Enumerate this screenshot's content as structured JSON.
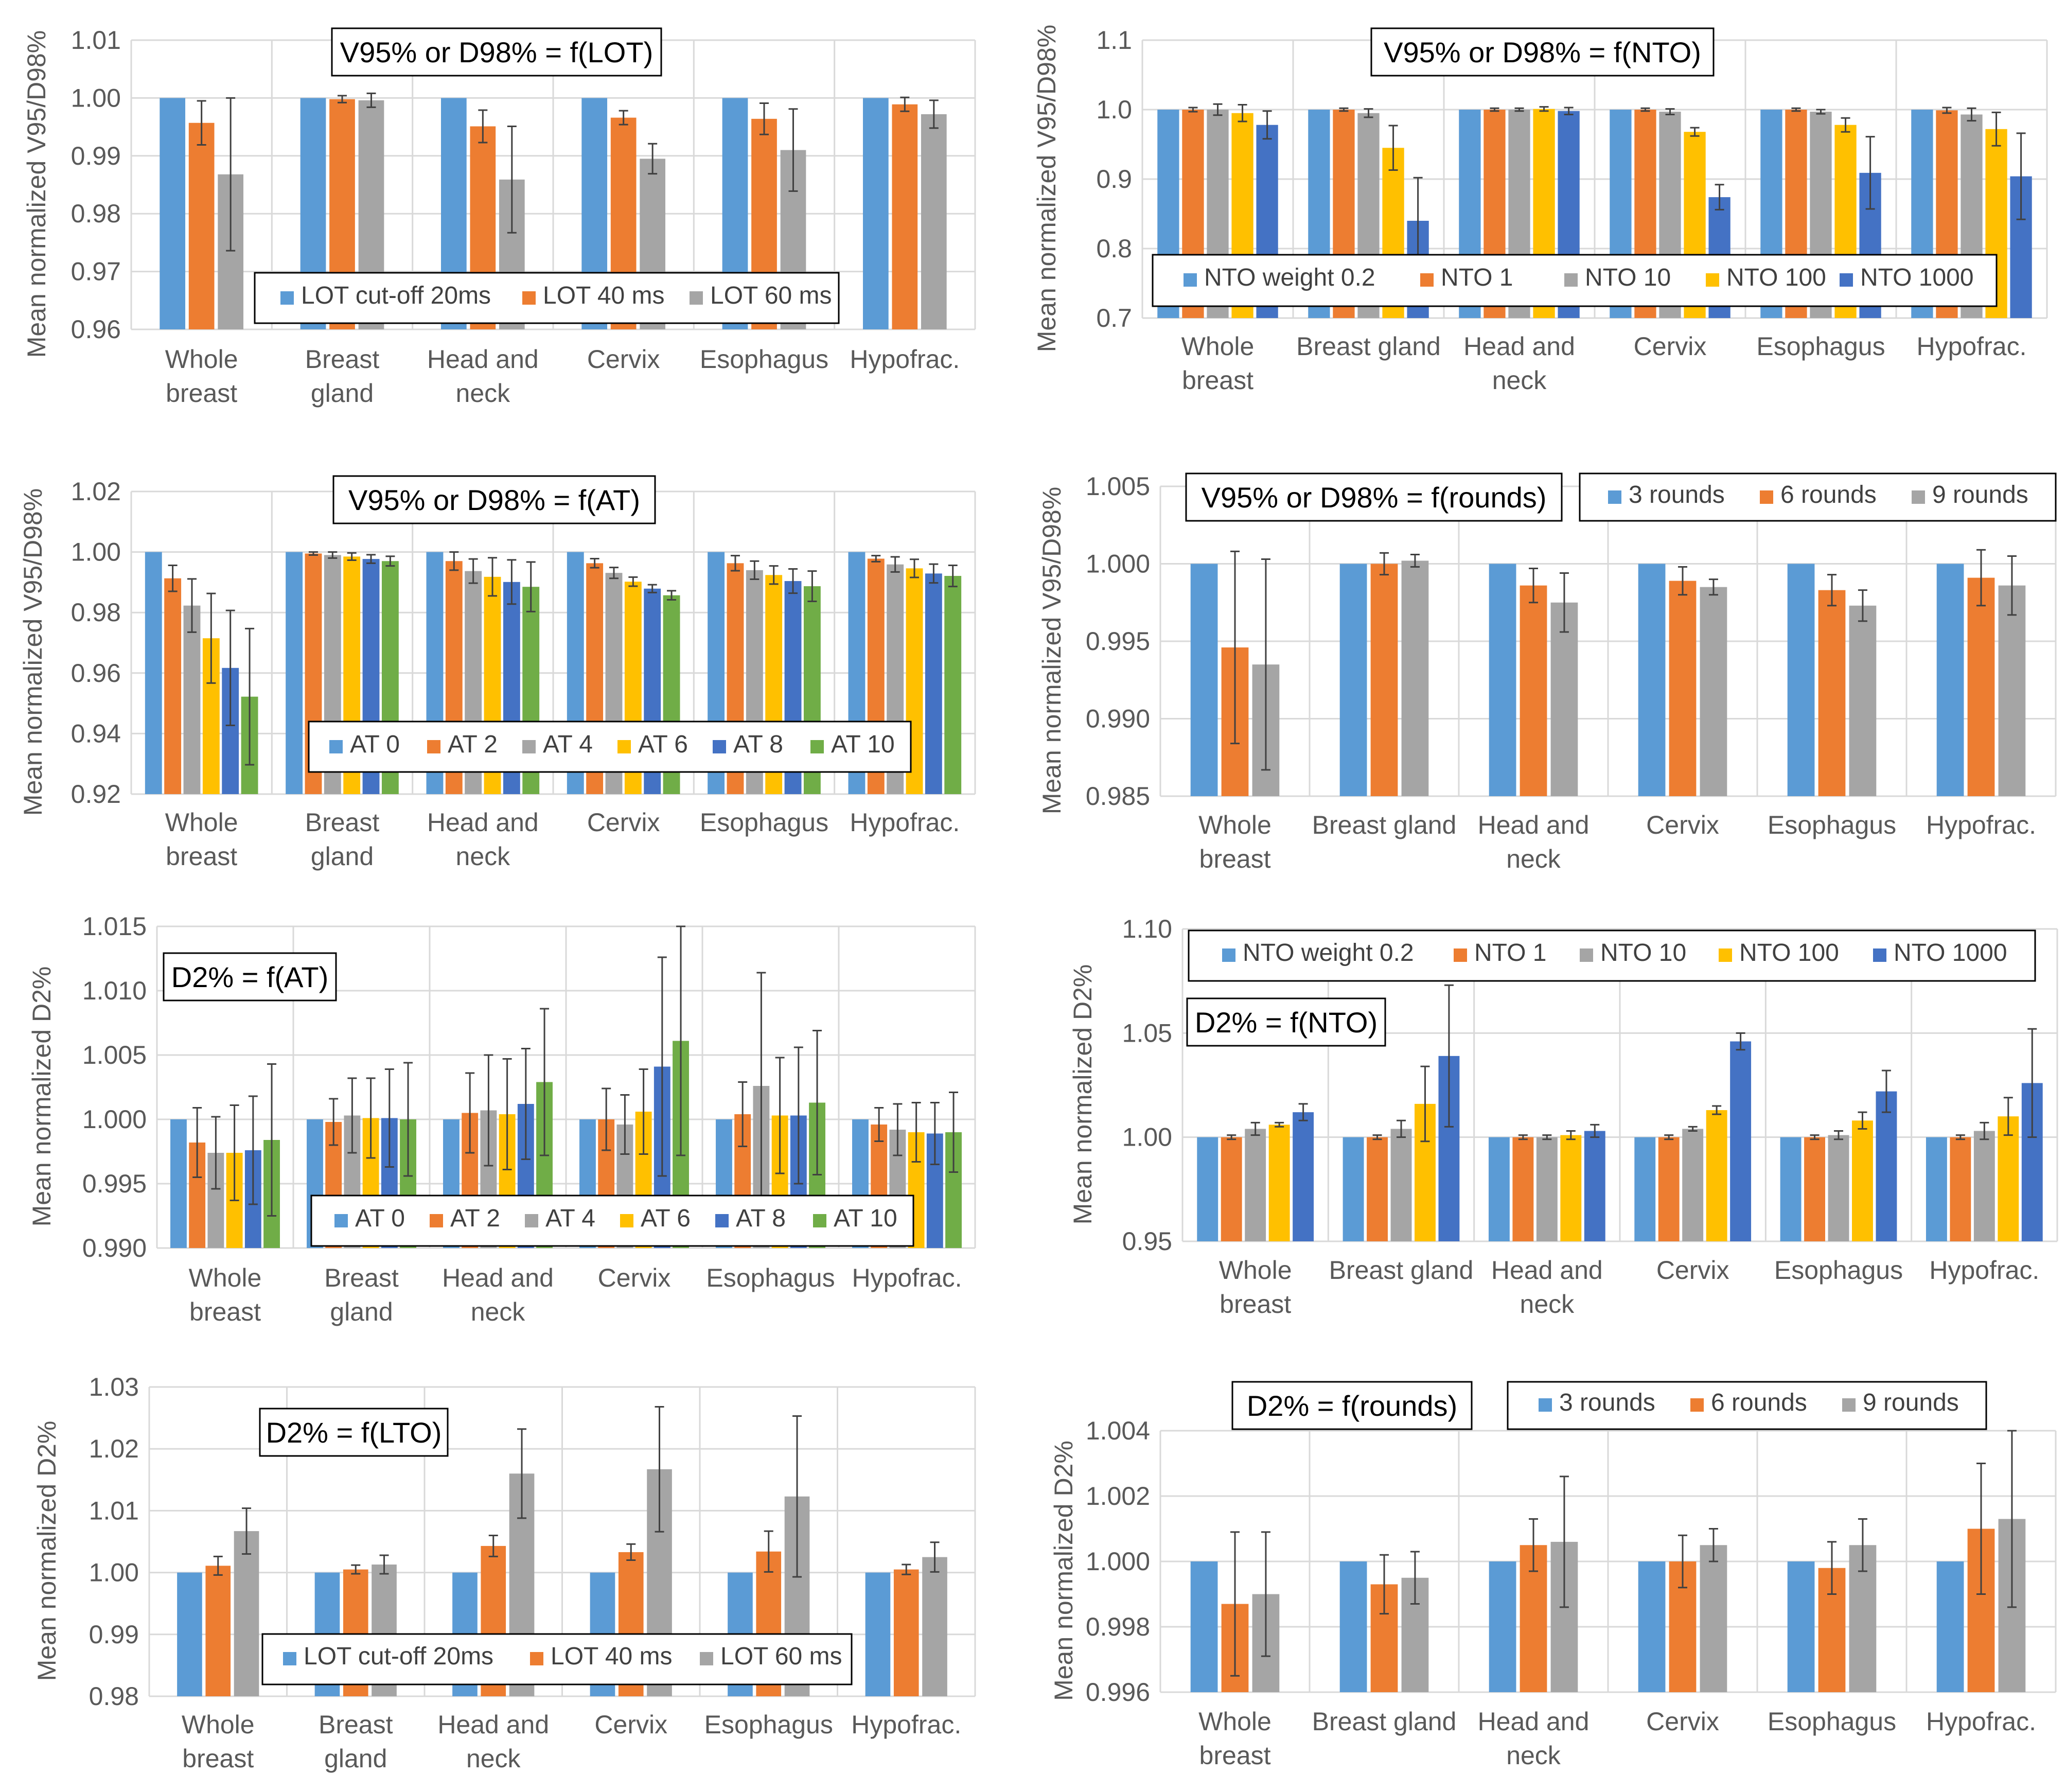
{
  "chart_data": [
    {
      "type": "bar",
      "title": "V95% or D98% = f(LOT)",
      "ylabel": "Mean normalized V95/D98%",
      "ylim": [
        0.96,
        1.01
      ],
      "yticks": [
        "0.96",
        "0.97",
        "0.98",
        "0.99",
        "1.00",
        "1.01"
      ],
      "categories": [
        "Whole breast",
        "Breast gland",
        "Head and neck",
        "Cervix",
        "Esophagus",
        "Hypofrac."
      ],
      "colors": [
        "#5B9BD5",
        "#ED7D31",
        "#A5A5A5"
      ],
      "series": [
        {
          "name": "LOT cut-off 20ms",
          "values": [
            1.0,
            1.0,
            1.0,
            1.0,
            1.0,
            1.0
          ],
          "errors": [
            0,
            0,
            0,
            0,
            0,
            0
          ]
        },
        {
          "name": "LOT 40 ms",
          "values": [
            0.9957,
            0.9998,
            0.9951,
            0.9966,
            0.9964,
            0.9989
          ],
          "errors": [
            0.0038,
            0.0006,
            0.0028,
            0.0012,
            0.0027,
            0.0012
          ]
        },
        {
          "name": "LOT 60 ms",
          "values": [
            0.9868,
            0.9996,
            0.9859,
            0.9895,
            0.991,
            0.9972
          ],
          "errors": [
            0.0132,
            0.0012,
            0.0092,
            0.0026,
            0.0071,
            0.0024
          ]
        }
      ]
    },
    {
      "type": "bar",
      "title": "V95% or D98% = f(NTO)",
      "ylabel": "Mean normalized V95/D98%",
      "ylim": [
        0.7,
        1.1
      ],
      "yticks": [
        "0.7",
        "0.8",
        "0.9",
        "1.0",
        "1.1"
      ],
      "categories": [
        "Whole breast",
        "Breast gland",
        "Head and neck",
        "Cervix",
        "Esophagus",
        "Hypofrac."
      ],
      "colors": [
        "#5B9BD5",
        "#ED7D31",
        "#A5A5A5",
        "#FFC000",
        "#4472C4"
      ],
      "series": [
        {
          "name": "NTO weight 0.2",
          "values": [
            1.0,
            1.0,
            1.0,
            1.0,
            1.0,
            1.0
          ],
          "errors": [
            0,
            0,
            0,
            0,
            0,
            0
          ]
        },
        {
          "name": "NTO 1",
          "values": [
            1.0,
            1.0,
            1.0,
            1.0,
            1.0,
            0.999
          ],
          "errors": [
            0.003,
            0.002,
            0.002,
            0.002,
            0.002,
            0.004
          ]
        },
        {
          "name": "NTO 10",
          "values": [
            1.0,
            0.995,
            1.0,
            0.997,
            0.997,
            0.993
          ],
          "errors": [
            0.008,
            0.006,
            0.002,
            0.004,
            0.003,
            0.009
          ]
        },
        {
          "name": "NTO 100",
          "values": [
            0.995,
            0.945,
            1.001,
            0.968,
            0.978,
            0.972
          ],
          "errors": [
            0.012,
            0.032,
            0.003,
            0.006,
            0.01,
            0.024
          ]
        },
        {
          "name": "NTO 1000",
          "values": [
            0.978,
            0.84,
            0.998,
            0.874,
            0.909,
            0.904
          ],
          "errors": [
            0.02,
            0.062,
            0.005,
            0.018,
            0.052,
            0.062
          ]
        }
      ]
    },
    {
      "type": "bar",
      "title": "V95% or D98% = f(AT)",
      "ylabel": "Mean normalized V95/D98%",
      "ylim": [
        0.92,
        1.02
      ],
      "yticks": [
        "0.92",
        "0.94",
        "0.96",
        "0.98",
        "1.00",
        "1.02"
      ],
      "categories": [
        "Whole breast",
        "Breast gland",
        "Head and neck",
        "Cervix",
        "Esophagus",
        "Hypofrac."
      ],
      "colors": [
        "#5B9BD5",
        "#ED7D31",
        "#A5A5A5",
        "#FFC000",
        "#4472C4",
        "#70AD47"
      ],
      "series": [
        {
          "name": "AT 0",
          "values": [
            1.0,
            1.0,
            1.0,
            1.0,
            1.0,
            1.0
          ],
          "errors": [
            0,
            0,
            0,
            0,
            0,
            0
          ]
        },
        {
          "name": "AT 2",
          "values": [
            0.9913,
            0.9995,
            0.997,
            0.9963,
            0.9963,
            0.9978
          ],
          "errors": [
            0.0043,
            0.0005,
            0.003,
            0.0015,
            0.0025,
            0.001
          ]
        },
        {
          "name": "AT 4",
          "values": [
            0.9823,
            0.999,
            0.9937,
            0.9931,
            0.994,
            0.9959
          ],
          "errors": [
            0.0088,
            0.001,
            0.004,
            0.0018,
            0.003,
            0.0025
          ]
        },
        {
          "name": "AT 6",
          "values": [
            0.9715,
            0.9985,
            0.9918,
            0.9902,
            0.9924,
            0.9946
          ],
          "errors": [
            0.0148,
            0.0012,
            0.0063,
            0.0015,
            0.003,
            0.003
          ]
        },
        {
          "name": "AT 8",
          "values": [
            0.9617,
            0.9977,
            0.9901,
            0.9879,
            0.9904,
            0.9929
          ],
          "errors": [
            0.019,
            0.0014,
            0.0073,
            0.0013,
            0.004,
            0.0031
          ]
        },
        {
          "name": "AT 10",
          "values": [
            0.9522,
            0.997,
            0.9885,
            0.9857,
            0.9887,
            0.9921
          ],
          "errors": [
            0.0225,
            0.0016,
            0.0082,
            0.0015,
            0.005,
            0.0035
          ]
        }
      ]
    },
    {
      "type": "bar",
      "title": "V95% or D98% = f(rounds)",
      "ylabel": "Mean normalized V95/D98%",
      "ylim": [
        0.985,
        1.005
      ],
      "yticks": [
        "0.985",
        "0.990",
        "0.995",
        "1.000",
        "1.005"
      ],
      "categories": [
        "Whole breast",
        "Breast gland",
        "Head and neck",
        "Cervix",
        "Esophagus",
        "Hypofrac."
      ],
      "colors": [
        "#5B9BD5",
        "#ED7D31",
        "#A5A5A5"
      ],
      "series": [
        {
          "name": "3 rounds",
          "values": [
            1.0,
            1.0,
            1.0,
            1.0,
            1.0,
            1.0
          ],
          "errors": [
            0,
            0,
            0,
            0,
            0,
            0
          ]
        },
        {
          "name": "6 rounds",
          "values": [
            0.9946,
            1.0,
            0.9986,
            0.9989,
            0.9983,
            0.9991
          ],
          "errors": [
            0.0062,
            0.0007,
            0.0011,
            0.0009,
            0.001,
            0.0018
          ]
        },
        {
          "name": "9 rounds",
          "values": [
            0.9935,
            1.0002,
            0.9975,
            0.9985,
            0.9973,
            0.9986
          ],
          "errors": [
            0.0068,
            0.0004,
            0.0019,
            0.0005,
            0.001,
            0.0019
          ]
        }
      ]
    },
    {
      "type": "bar",
      "title": "D2% = f(AT)",
      "ylabel": "Mean normalized D2%",
      "ylim": [
        0.99,
        1.015
      ],
      "yticks": [
        "0.990",
        "0.995",
        "1.000",
        "1.005",
        "1.010",
        "1.015"
      ],
      "categories": [
        "Whole breast",
        "Breast gland",
        "Head and neck",
        "Cervix",
        "Esophagus",
        "Hypofrac."
      ],
      "colors": [
        "#5B9BD5",
        "#ED7D31",
        "#A5A5A5",
        "#FFC000",
        "#4472C4",
        "#70AD47"
      ],
      "series": [
        {
          "name": "AT 0",
          "values": [
            1.0,
            1.0,
            1.0,
            1.0,
            1.0,
            1.0
          ],
          "errors": [
            0,
            0,
            0,
            0,
            0,
            0
          ]
        },
        {
          "name": "AT 2",
          "values": [
            0.9982,
            0.9998,
            1.0005,
            1.0,
            1.0004,
            0.9996
          ],
          "errors": [
            0.0027,
            0.0018,
            0.0031,
            0.0024,
            0.0025,
            0.0013
          ]
        },
        {
          "name": "AT 4",
          "values": [
            0.9974,
            1.0003,
            1.0007,
            0.9996,
            1.0026,
            0.9992
          ],
          "errors": [
            0.0028,
            0.0029,
            0.0043,
            0.0023,
            0.0088,
            0.002
          ]
        },
        {
          "name": "AT 6",
          "values": [
            0.9974,
            1.0001,
            1.0004,
            1.0006,
            1.0003,
            0.999
          ],
          "errors": [
            0.0037,
            0.0031,
            0.0043,
            0.0033,
            0.0045,
            0.0023
          ]
        },
        {
          "name": "AT 8",
          "values": [
            0.9976,
            1.0001,
            1.0012,
            1.0041,
            1.0003,
            0.9989
          ],
          "errors": [
            0.0042,
            0.0038,
            0.0043,
            0.0085,
            0.0053,
            0.0024
          ]
        },
        {
          "name": "AT 10",
          "values": [
            0.9984,
            1.0,
            1.0029,
            1.0061,
            1.0013,
            0.999
          ],
          "errors": [
            0.0059,
            0.0044,
            0.0057,
            0.0089,
            0.0056,
            0.0031
          ]
        }
      ]
    },
    {
      "type": "bar",
      "title": "D2% = f(NTO)",
      "ylabel": "Mean normalized D2%",
      "ylim": [
        0.95,
        1.1
      ],
      "yticks": [
        "0.95",
        "1.00",
        "1.05",
        "1.10"
      ],
      "categories": [
        "Whole breast",
        "Breast gland",
        "Head and neck",
        "Cervix",
        "Esophagus",
        "Hypofrac."
      ],
      "colors": [
        "#5B9BD5",
        "#ED7D31",
        "#A5A5A5",
        "#FFC000",
        "#4472C4"
      ],
      "series": [
        {
          "name": "NTO weight 0.2",
          "values": [
            1.0,
            1.0,
            1.0,
            1.0,
            1.0,
            1.0
          ],
          "errors": [
            0,
            0,
            0,
            0,
            0,
            0
          ]
        },
        {
          "name": "NTO 1",
          "values": [
            1.0,
            1.0,
            1.0,
            1.0,
            1.0,
            1.0
          ],
          "errors": [
            0.001,
            0.001,
            0.001,
            0.001,
            0.001,
            0.001
          ]
        },
        {
          "name": "NTO 10",
          "values": [
            1.004,
            1.004,
            1.0,
            1.004,
            1.001,
            1.003
          ],
          "errors": [
            0.003,
            0.004,
            0.001,
            0.001,
            0.002,
            0.004
          ]
        },
        {
          "name": "NTO 100",
          "values": [
            1.006,
            1.016,
            1.001,
            1.013,
            1.008,
            1.01
          ],
          "errors": [
            0.001,
            0.018,
            0.002,
            0.002,
            0.004,
            0.009
          ]
        },
        {
          "name": "NTO 1000",
          "values": [
            1.012,
            1.039,
            1.003,
            1.046,
            1.022,
            1.026
          ],
          "errors": [
            0.004,
            0.034,
            0.003,
            0.004,
            0.01,
            0.026
          ]
        }
      ]
    },
    {
      "type": "bar",
      "title": "D2% = f(LTO)",
      "ylabel": "Mean normalized D2%",
      "ylim": [
        0.98,
        1.03
      ],
      "yticks": [
        "0.98",
        "0.99",
        "1.00",
        "1.01",
        "1.02",
        "1.03"
      ],
      "categories": [
        "Whole breast",
        "Breast gland",
        "Head and neck",
        "Cervix",
        "Esophagus",
        "Hypofrac."
      ],
      "colors": [
        "#5B9BD5",
        "#ED7D31",
        "#A5A5A5"
      ],
      "series": [
        {
          "name": "LOT cut-off 20ms",
          "values": [
            1.0,
            1.0,
            1.0,
            1.0,
            1.0,
            1.0
          ],
          "errors": [
            0,
            0,
            0,
            0,
            0,
            0
          ]
        },
        {
          "name": "LOT 40 ms",
          "values": [
            1.0011,
            1.0005,
            1.0043,
            1.0033,
            1.0034,
            1.0005
          ],
          "errors": [
            0.0015,
            0.0007,
            0.0017,
            0.0013,
            0.0033,
            0.0008
          ]
        },
        {
          "name": "LOT 60 ms",
          "values": [
            1.0067,
            1.0013,
            1.016,
            1.0167,
            1.0123,
            1.0025
          ],
          "errors": [
            0.0037,
            0.0015,
            0.0072,
            0.0101,
            0.013,
            0.0024
          ]
        }
      ]
    },
    {
      "type": "bar",
      "title": "D2% = f(rounds)",
      "ylabel": "Mean normalized D2%",
      "ylim": [
        0.996,
        1.004
      ],
      "yticks": [
        "0.996",
        "0.998",
        "1.000",
        "1.002",
        "1.004"
      ],
      "categories": [
        "Whole breast",
        "Breast gland",
        "Head and neck",
        "Cervix",
        "Esophagus",
        "Hypofrac."
      ],
      "colors": [
        "#5B9BD5",
        "#ED7D31",
        "#A5A5A5"
      ],
      "series": [
        {
          "name": "3 rounds",
          "values": [
            1.0,
            1.0,
            1.0,
            1.0,
            1.0,
            1.0
          ],
          "errors": [
            0,
            0,
            0,
            0,
            0,
            0
          ]
        },
        {
          "name": "6 rounds",
          "values": [
            0.9987,
            0.9993,
            1.0005,
            1.0,
            0.9998,
            1.001
          ],
          "errors": [
            0.0022,
            0.0009,
            0.0008,
            0.0008,
            0.0008,
            0.002
          ]
        },
        {
          "name": "9 rounds",
          "values": [
            0.999,
            0.9995,
            1.0006,
            1.0005,
            1.0005,
            1.0013
          ],
          "errors": [
            0.0019,
            0.0008,
            0.002,
            0.0005,
            0.0008,
            0.0027
          ]
        }
      ]
    }
  ]
}
